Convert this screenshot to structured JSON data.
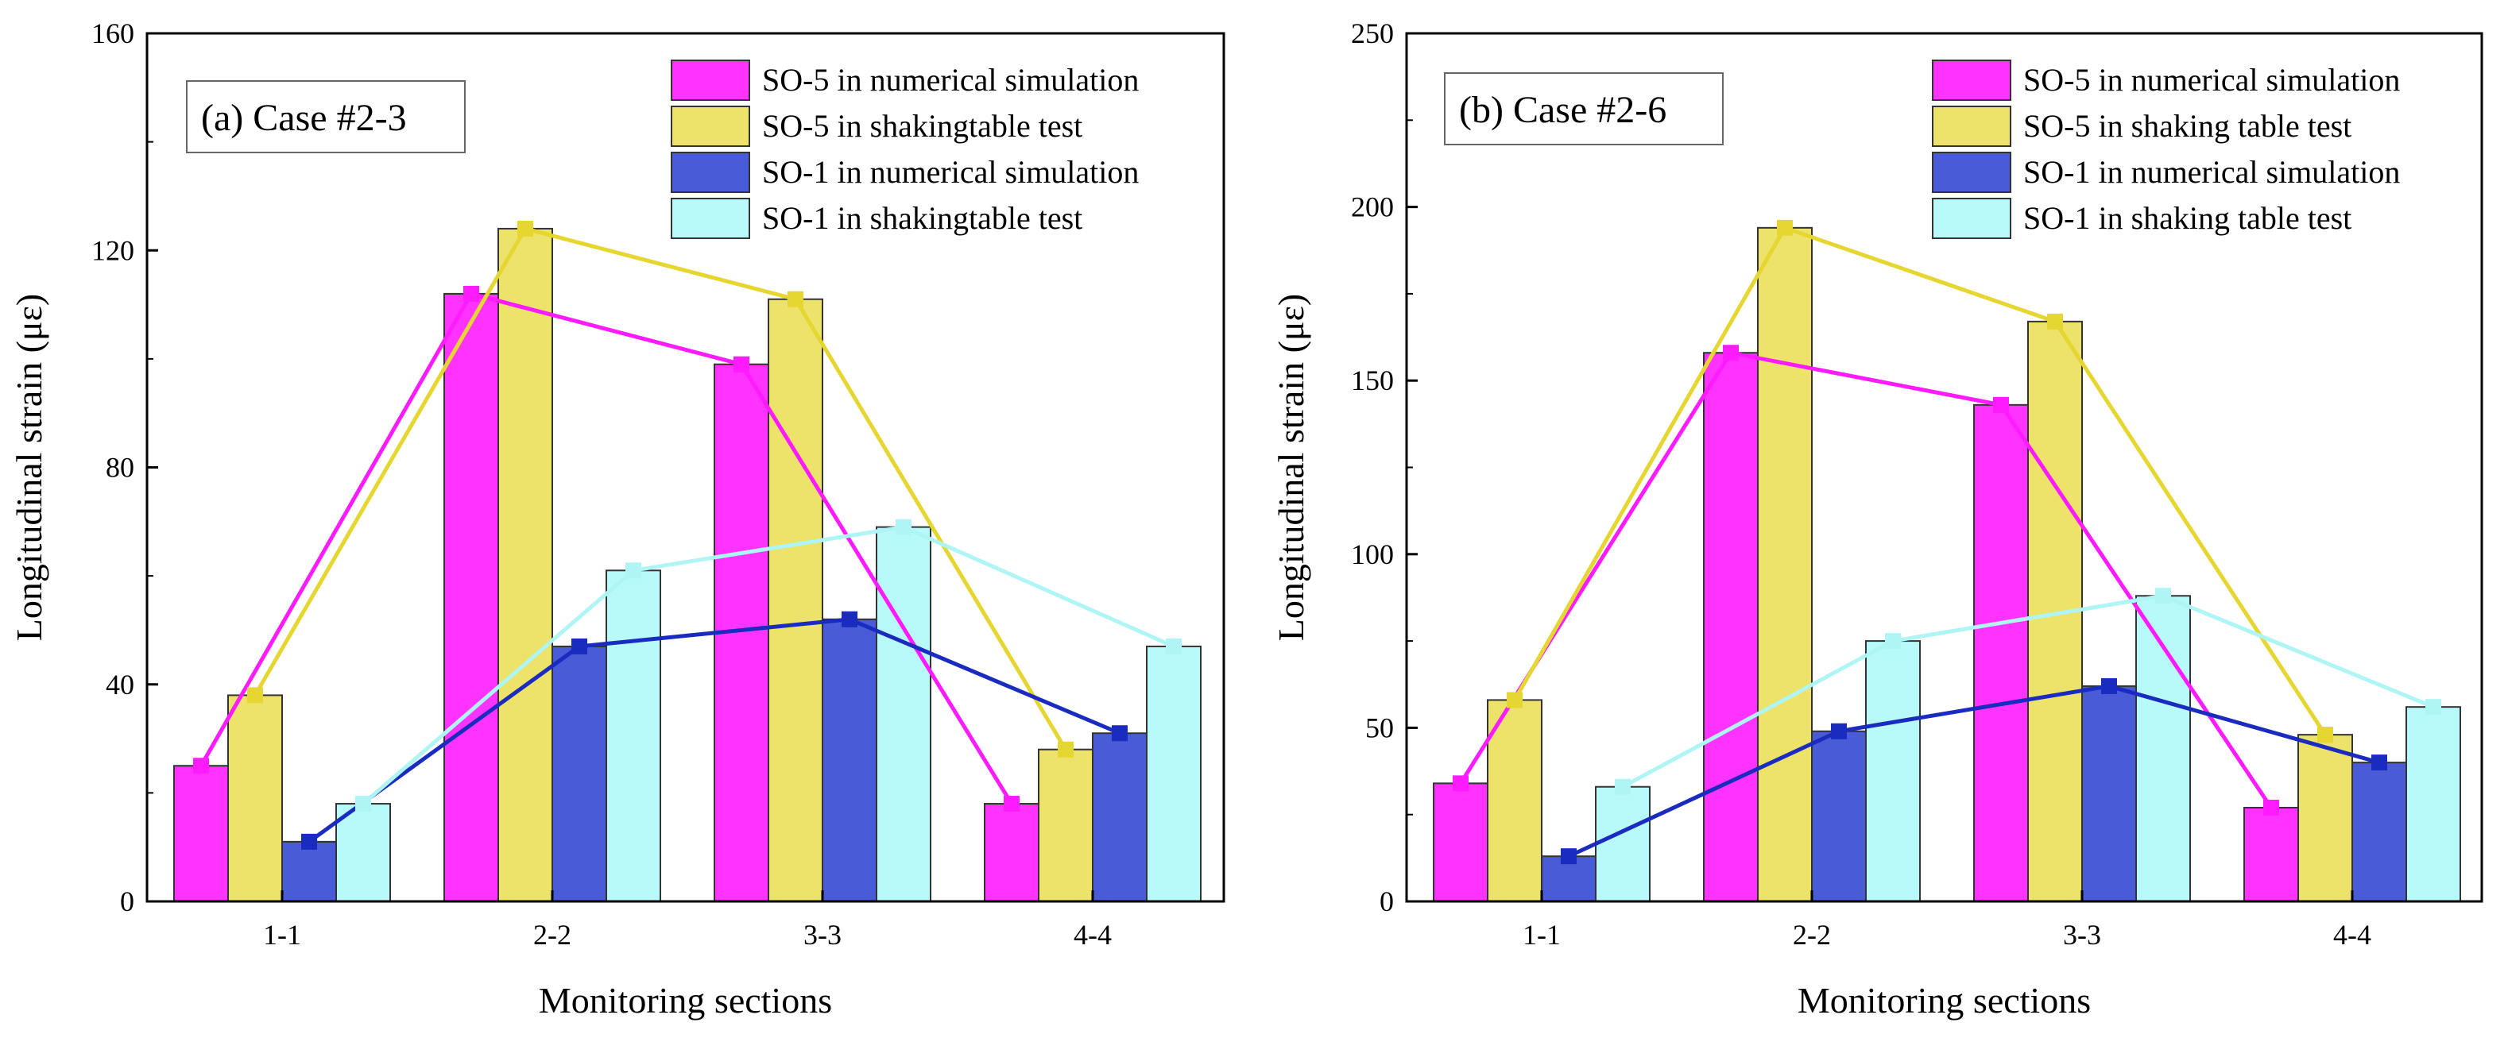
{
  "chart_data": [
    {
      "type": "bar",
      "title": "(a) Case #2-3",
      "xlabel": "Monitoring sections",
      "ylabel": "Longitudinal strain (με)",
      "categories": [
        "1-1",
        "2-2",
        "3-3",
        "4-4"
      ],
      "ylim": [
        0,
        160
      ],
      "yticks": [
        "0",
        "40",
        "80",
        "120",
        "160"
      ],
      "legend_position": "top-right",
      "overlay": "each series also drawn as a line through bar tops with square markers",
      "series": [
        {
          "name": "SO-5 in numerical simulation",
          "color": "#ff33ff",
          "line_color": "#ff1aff",
          "values": [
            25,
            112,
            99,
            18
          ]
        },
        {
          "name": "SO-5 in shakingtable test",
          "color": "#ede26a",
          "line_color": "#e6d631",
          "values": [
            38,
            124,
            111,
            28
          ]
        },
        {
          "name": "SO-1 in numerical simulation",
          "color": "#4a5bd8",
          "line_color": "#1a2bbf",
          "values": [
            11,
            47,
            52,
            31
          ]
        },
        {
          "name": "SO-1 in shakingtable test",
          "color": "#b8fafa",
          "line_color": "#aff5f5",
          "values": [
            18,
            61,
            69,
            47
          ]
        }
      ]
    },
    {
      "type": "bar",
      "title": "(b) Case #2-6",
      "xlabel": "Monitoring sections",
      "ylabel": "Longitudinal strain (με)",
      "categories": [
        "1-1",
        "2-2",
        "3-3",
        "4-4"
      ],
      "ylim": [
        0,
        250
      ],
      "yticks": [
        "0",
        "50",
        "100",
        "150",
        "200",
        "250"
      ],
      "legend_position": "top-right",
      "overlay": "each series also drawn as a line through bar tops with square markers",
      "series": [
        {
          "name": "SO-5 in numerical simulation",
          "color": "#ff33ff",
          "line_color": "#ff1aff",
          "values": [
            34,
            158,
            143,
            27
          ]
        },
        {
          "name": "SO-5 in shaking table test",
          "color": "#ede26a",
          "line_color": "#e6d631",
          "values": [
            58,
            194,
            167,
            48
          ]
        },
        {
          "name": "SO-1 in numerical simulation",
          "color": "#4a5bd8",
          "line_color": "#1a2bbf",
          "values": [
            13,
            49,
            62,
            40
          ]
        },
        {
          "name": "SO-1 in shaking table test",
          "color": "#b8fafa",
          "line_color": "#aff5f5",
          "values": [
            33,
            75,
            88,
            56
          ]
        }
      ]
    }
  ]
}
